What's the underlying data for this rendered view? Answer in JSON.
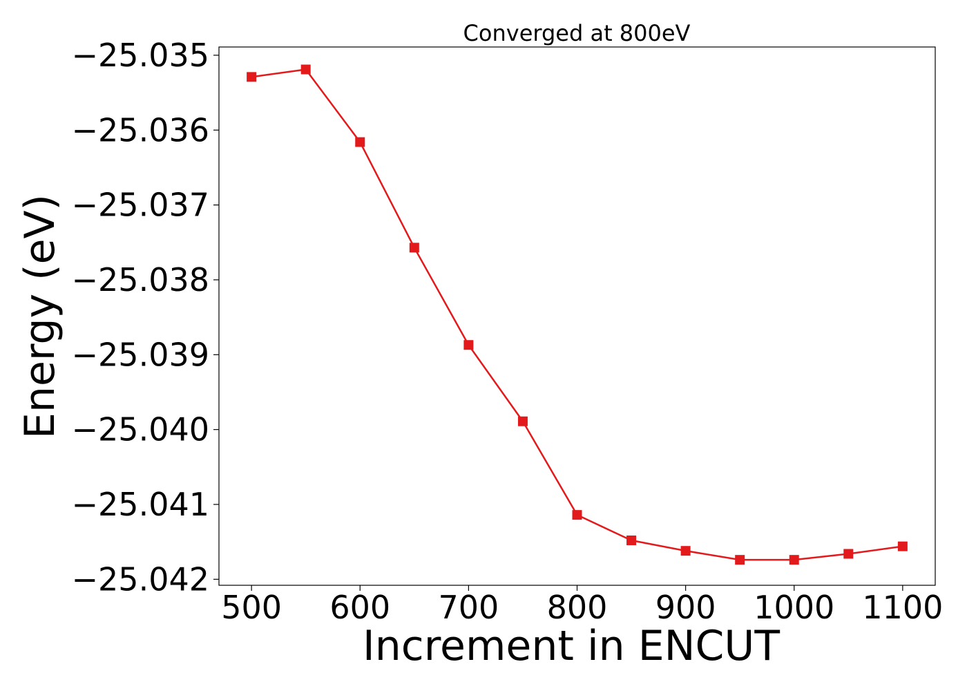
{
  "chart_data": {
    "type": "line",
    "title": "Converged at 800eV",
    "xlabel": "Increment in ENCUT",
    "ylabel": "Energy (eV)",
    "x": [
      500,
      550,
      600,
      650,
      700,
      750,
      800,
      850,
      900,
      950,
      1000,
      1050,
      1100
    ],
    "series": [
      {
        "values": [
          -25.03529,
          -25.03519,
          -25.03616,
          -25.03757,
          -25.03887,
          -25.03989,
          -25.04114,
          -25.04148,
          -25.04162,
          -25.04174,
          -25.04174,
          -25.04166,
          -25.04156
        ],
        "color": "#e31a1c",
        "marker": "square"
      }
    ],
    "xticks": [
      500,
      600,
      700,
      800,
      900,
      1000,
      1100
    ],
    "xtick_labels": [
      "500",
      "600",
      "700",
      "800",
      "900",
      "1000",
      "1100"
    ],
    "yticks": [
      -25.035,
      -25.036,
      -25.037,
      -25.038,
      -25.039,
      -25.04,
      -25.041,
      -25.042
    ],
    "ytick_labels": [
      "−25.035",
      "−25.036",
      "−25.037",
      "−25.038",
      "−25.039",
      "−25.040",
      "−25.041",
      "−25.042"
    ],
    "xlim": [
      470,
      1130
    ],
    "ylim": [
      -25.04208,
      -25.03489
    ],
    "grid": false,
    "legend": false
  }
}
